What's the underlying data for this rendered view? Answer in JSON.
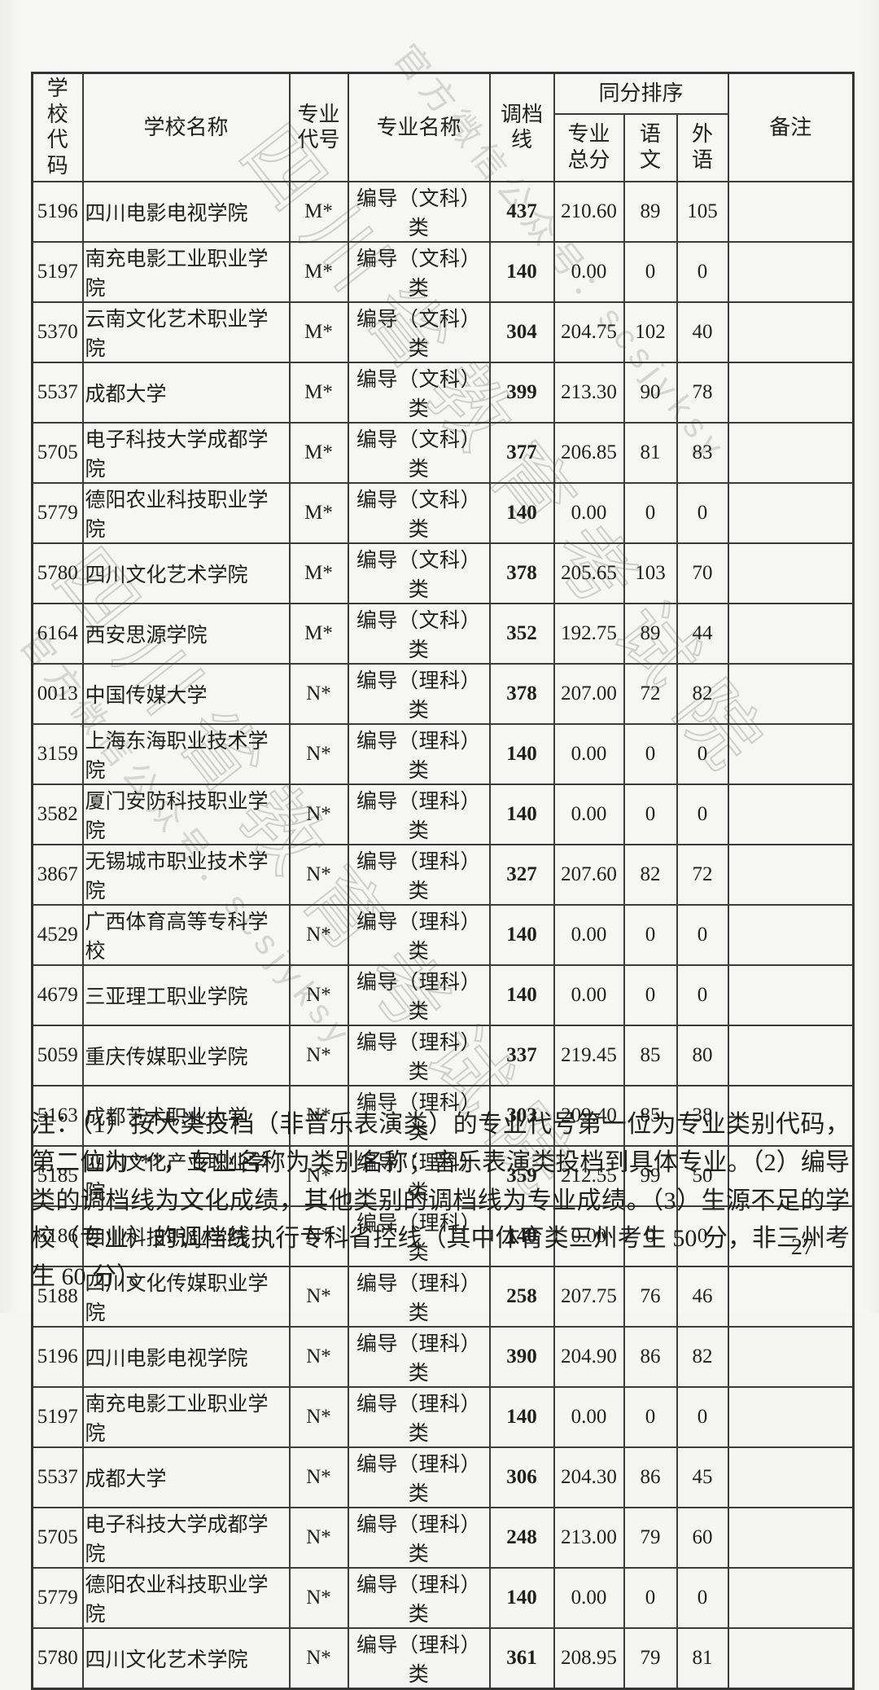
{
  "watermark": {
    "big": "四川省教育考试院",
    "small": "官方微信公众号：scsjyksy"
  },
  "table": {
    "headers": {
      "school_code": "学校代码",
      "school_name": "学校名称",
      "major_code": "专业代号",
      "major_name": "专业名称",
      "cutoff": "调档线",
      "tie_break_group": "同分排序",
      "major_total": "专业总分",
      "chinese": "语文",
      "foreign": "外语",
      "remark": "备注"
    },
    "rows": [
      {
        "school_code": "5196",
        "school_name": "四川电影电视学院",
        "major_code": "M*",
        "major_name": "编导（文科）类",
        "cutoff": "437",
        "major_total": "210.60",
        "chinese": "89",
        "foreign": "105",
        "remark": ""
      },
      {
        "school_code": "5197",
        "school_name": "南充电影工业职业学院",
        "major_code": "M*",
        "major_name": "编导（文科）类",
        "cutoff": "140",
        "major_total": "0.00",
        "chinese": "0",
        "foreign": "0",
        "remark": ""
      },
      {
        "school_code": "5370",
        "school_name": "云南文化艺术职业学院",
        "major_code": "M*",
        "major_name": "编导（文科）类",
        "cutoff": "304",
        "major_total": "204.75",
        "chinese": "102",
        "foreign": "40",
        "remark": ""
      },
      {
        "school_code": "5537",
        "school_name": "成都大学",
        "major_code": "M*",
        "major_name": "编导（文科）类",
        "cutoff": "399",
        "major_total": "213.30",
        "chinese": "90",
        "foreign": "78",
        "remark": ""
      },
      {
        "school_code": "5705",
        "school_name": "电子科技大学成都学院",
        "major_code": "M*",
        "major_name": "编导（文科）类",
        "cutoff": "377",
        "major_total": "206.85",
        "chinese": "81",
        "foreign": "83",
        "remark": ""
      },
      {
        "school_code": "5779",
        "school_name": "德阳农业科技职业学院",
        "major_code": "M*",
        "major_name": "编导（文科）类",
        "cutoff": "140",
        "major_total": "0.00",
        "chinese": "0",
        "foreign": "0",
        "remark": ""
      },
      {
        "school_code": "5780",
        "school_name": "四川文化艺术学院",
        "major_code": "M*",
        "major_name": "编导（文科）类",
        "cutoff": "378",
        "major_total": "205.65",
        "chinese": "103",
        "foreign": "70",
        "remark": ""
      },
      {
        "school_code": "6164",
        "school_name": "西安思源学院",
        "major_code": "M*",
        "major_name": "编导（文科）类",
        "cutoff": "352",
        "major_total": "192.75",
        "chinese": "89",
        "foreign": "44",
        "remark": ""
      },
      {
        "school_code": "0013",
        "school_name": "中国传媒大学",
        "major_code": "N*",
        "major_name": "编导（理科）类",
        "cutoff": "378",
        "major_total": "207.00",
        "chinese": "72",
        "foreign": "82",
        "remark": ""
      },
      {
        "school_code": "3159",
        "school_name": "上海东海职业技术学院",
        "major_code": "N*",
        "major_name": "编导（理科）类",
        "cutoff": "140",
        "major_total": "0.00",
        "chinese": "0",
        "foreign": "0",
        "remark": ""
      },
      {
        "school_code": "3582",
        "school_name": "厦门安防科技职业学院",
        "major_code": "N*",
        "major_name": "编导（理科）类",
        "cutoff": "140",
        "major_total": "0.00",
        "chinese": "0",
        "foreign": "0",
        "remark": ""
      },
      {
        "school_code": "3867",
        "school_name": "无锡城市职业技术学院",
        "major_code": "N*",
        "major_name": "编导（理科）类",
        "cutoff": "327",
        "major_total": "207.60",
        "chinese": "82",
        "foreign": "72",
        "remark": ""
      },
      {
        "school_code": "4529",
        "school_name": "广西体育高等专科学校",
        "major_code": "N*",
        "major_name": "编导（理科）类",
        "cutoff": "140",
        "major_total": "0.00",
        "chinese": "0",
        "foreign": "0",
        "remark": ""
      },
      {
        "school_code": "4679",
        "school_name": "三亚理工职业学院",
        "major_code": "N*",
        "major_name": "编导（理科）类",
        "cutoff": "140",
        "major_total": "0.00",
        "chinese": "0",
        "foreign": "0",
        "remark": ""
      },
      {
        "school_code": "5059",
        "school_name": "重庆传媒职业学院",
        "major_code": "N*",
        "major_name": "编导（理科）类",
        "cutoff": "337",
        "major_total": "219.45",
        "chinese": "85",
        "foreign": "80",
        "remark": ""
      },
      {
        "school_code": "5163",
        "school_name": "成都艺术职业大学",
        "major_code": "N*",
        "major_name": "编导（理科）类",
        "cutoff": "303",
        "major_total": "209.40",
        "chinese": "85",
        "foreign": "38",
        "remark": ""
      },
      {
        "school_code": "5185",
        "school_name": "四川文化产业职业学院",
        "major_code": "N*",
        "major_name": "编导（理科）类",
        "cutoff": "359",
        "major_total": "212.55",
        "chinese": "99",
        "foreign": "50",
        "remark": ""
      },
      {
        "school_code": "5186",
        "school_name": "四川科技职业学院",
        "major_code": "N*",
        "major_name": "编导（理科）类",
        "cutoff": "140",
        "major_total": "0.00",
        "chinese": "0",
        "foreign": "0",
        "remark": ""
      },
      {
        "school_code": "5188",
        "school_name": "四川文化传媒职业学院",
        "major_code": "N*",
        "major_name": "编导（理科）类",
        "cutoff": "258",
        "major_total": "207.75",
        "chinese": "76",
        "foreign": "46",
        "remark": ""
      },
      {
        "school_code": "5196",
        "school_name": "四川电影电视学院",
        "major_code": "N*",
        "major_name": "编导（理科）类",
        "cutoff": "390",
        "major_total": "204.90",
        "chinese": "86",
        "foreign": "82",
        "remark": ""
      },
      {
        "school_code": "5197",
        "school_name": "南充电影工业职业学院",
        "major_code": "N*",
        "major_name": "编导（理科）类",
        "cutoff": "140",
        "major_total": "0.00",
        "chinese": "0",
        "foreign": "0",
        "remark": ""
      },
      {
        "school_code": "5537",
        "school_name": "成都大学",
        "major_code": "N*",
        "major_name": "编导（理科）类",
        "cutoff": "306",
        "major_total": "204.30",
        "chinese": "86",
        "foreign": "45",
        "remark": ""
      },
      {
        "school_code": "5705",
        "school_name": "电子科技大学成都学院",
        "major_code": "N*",
        "major_name": "编导（理科）类",
        "cutoff": "248",
        "major_total": "213.00",
        "chinese": "79",
        "foreign": "60",
        "remark": ""
      },
      {
        "school_code": "5779",
        "school_name": "德阳农业科技职业学院",
        "major_code": "N*",
        "major_name": "编导（理科）类",
        "cutoff": "140",
        "major_total": "0.00",
        "chinese": "0",
        "foreign": "0",
        "remark": ""
      },
      {
        "school_code": "5780",
        "school_name": "四川文化艺术学院",
        "major_code": "N*",
        "major_name": "编导（理科）类",
        "cutoff": "361",
        "major_total": "208.95",
        "chinese": "79",
        "foreign": "81",
        "remark": ""
      }
    ]
  },
  "note": "注：（1）按大类投档（非音乐表演类）的专业代号第一位为专业类别代码，第二位为“*”，专业名称为类别名称；音乐表演类投档到具体专业。（2）编导类的调档线为文化成绩，其他类别的调档线为专业成绩。（3）生源不足的学校（专业）的调档线执行专科省控线（其中体育类三州考生 50 分，非三州考生 60 分）。",
  "page_number": "27"
}
